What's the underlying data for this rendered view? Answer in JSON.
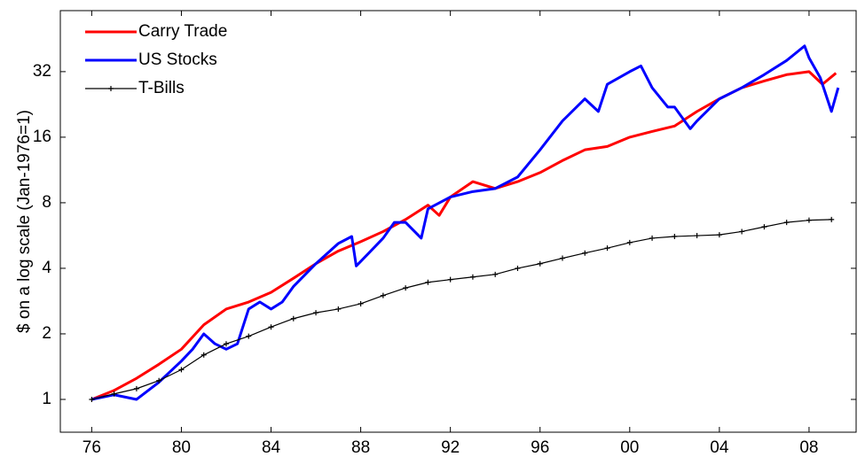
{
  "chart_data": {
    "type": "line",
    "y_label": "$ on a log scale (Jan-1976=1)",
    "log_y": true,
    "legend": "upper left",
    "xlim": [
      1974.6,
      2010.1
    ],
    "xticks": [
      {
        "value": 1976,
        "label": "76"
      },
      {
        "value": 1980,
        "label": "80"
      },
      {
        "value": 1984,
        "label": "84"
      },
      {
        "value": 1988,
        "label": "88"
      },
      {
        "value": 1992,
        "label": "92"
      },
      {
        "value": 1996,
        "label": "96"
      },
      {
        "value": 2000,
        "label": "00"
      },
      {
        "value": 2004,
        "label": "04"
      },
      {
        "value": 2008,
        "label": "08"
      }
    ],
    "ylim": [
      0.707,
      61
    ],
    "yticks": [
      1,
      2,
      4,
      8,
      16,
      32
    ],
    "series": [
      {
        "name": "Carry Trade",
        "color": "#ff0000",
        "x": [
          1976,
          1977,
          1978,
          1979,
          1980,
          1981,
          1982,
          1983,
          1984,
          1985,
          1986,
          1987,
          1988,
          1989,
          1990,
          1991,
          1991.5,
          1992,
          1993,
          1994,
          1995,
          1996,
          1997,
          1998,
          1999,
          2000,
          2001,
          2002,
          2003,
          2004,
          2005,
          2006,
          2007,
          2008,
          2008.6,
          2009.2
        ],
        "values": [
          1.0,
          1.1,
          1.25,
          1.45,
          1.7,
          2.2,
          2.6,
          2.8,
          3.1,
          3.6,
          4.2,
          4.8,
          5.3,
          5.9,
          6.7,
          7.8,
          7.0,
          8.5,
          10.0,
          9.3,
          10.0,
          11.0,
          12.5,
          14.0,
          14.5,
          16.0,
          17.0,
          18.0,
          21.0,
          24.0,
          27.0,
          29.0,
          31.0,
          32.0,
          28.0,
          31.5
        ]
      },
      {
        "name": "US Stocks",
        "color": "#0000ff",
        "x": [
          1976,
          1977,
          1978,
          1979,
          1980,
          1980.5,
          1981,
          1981.5,
          1982,
          1982.5,
          1983,
          1983.5,
          1984,
          1984.5,
          1985,
          1986,
          1987,
          1987.6,
          1987.8,
          1988,
          1989,
          1989.5,
          1990,
          1990.7,
          1991,
          1992,
          1993,
          1994,
          1995,
          1996,
          1997,
          1998,
          1998.6,
          1999,
          2000,
          2000.5,
          2001,
          2001.7,
          2002,
          2002.7,
          2003,
          2004,
          2005,
          2006,
          2007,
          2007.8,
          2008,
          2008.5,
          2009,
          2009.3
        ],
        "values": [
          1.0,
          1.05,
          1.0,
          1.2,
          1.5,
          1.7,
          2.0,
          1.8,
          1.7,
          1.8,
          2.6,
          2.8,
          2.6,
          2.8,
          3.3,
          4.2,
          5.2,
          5.6,
          4.1,
          4.3,
          5.5,
          6.5,
          6.5,
          5.5,
          7.5,
          8.5,
          9.0,
          9.3,
          10.5,
          14.0,
          19.0,
          24.0,
          21.0,
          28.0,
          32.0,
          34.0,
          27.0,
          22.0,
          22.0,
          17.5,
          19.0,
          24.0,
          27.0,
          31.0,
          36.0,
          42.0,
          37.0,
          30.0,
          21.0,
          27.0
        ]
      },
      {
        "name": "T-Bills",
        "color": "#000000",
        "marker": "+",
        "x": [
          1976,
          1977,
          1978,
          1979,
          1980,
          1981,
          1982,
          1983,
          1984,
          1985,
          1986,
          1987,
          1988,
          1989,
          1990,
          1991,
          1992,
          1993,
          1994,
          1995,
          1996,
          1997,
          1998,
          1999,
          2000,
          2001,
          2002,
          2003,
          2004,
          2005,
          2006,
          2007,
          2008,
          2009
        ],
        "values": [
          1.0,
          1.06,
          1.12,
          1.22,
          1.37,
          1.6,
          1.8,
          1.95,
          2.15,
          2.35,
          2.5,
          2.6,
          2.75,
          3.0,
          3.25,
          3.45,
          3.55,
          3.65,
          3.75,
          4.0,
          4.2,
          4.45,
          4.7,
          4.95,
          5.25,
          5.5,
          5.6,
          5.65,
          5.7,
          5.9,
          6.2,
          6.5,
          6.65,
          6.7
        ]
      }
    ]
  }
}
